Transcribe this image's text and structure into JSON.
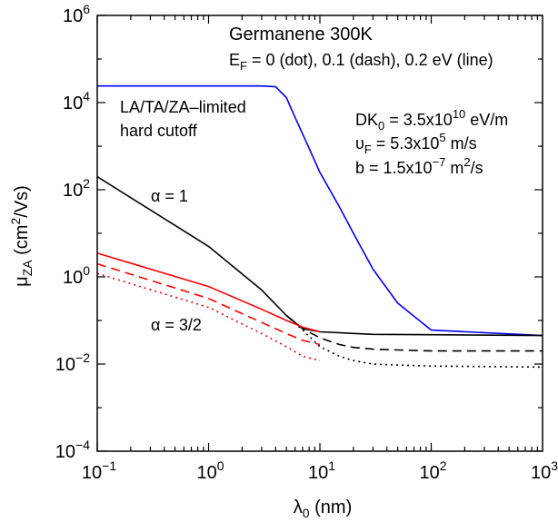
{
  "chart_data": {
    "type": "line",
    "x_scale": "log",
    "y_scale": "log",
    "xlim": [
      0.1,
      1000
    ],
    "ylim": [
      0.0001,
      1000000
    ],
    "x_ticks": [
      {
        "value": 0.1,
        "base": "10",
        "exp": "−1"
      },
      {
        "value": 1,
        "base": "10",
        "exp": "0"
      },
      {
        "value": 10,
        "base": "10",
        "exp": "1"
      },
      {
        "value": 100,
        "base": "10",
        "exp": "2"
      },
      {
        "value": 1000,
        "base": "10",
        "exp": "3"
      }
    ],
    "y_ticks": [
      {
        "value": 0.0001,
        "base": "10",
        "exp": "−4"
      },
      {
        "value": 0.01,
        "base": "10",
        "exp": "−2"
      },
      {
        "value": 1,
        "base": "10",
        "exp": "0"
      },
      {
        "value": 100,
        "base": "10",
        "exp": "2"
      },
      {
        "value": 10000,
        "base": "10",
        "exp": "4"
      },
      {
        "value": 1000000,
        "base": "10",
        "exp": "6"
      }
    ],
    "xlabel": {
      "main": "λ",
      "sub": "0",
      "rest": " (nm)"
    },
    "ylabel": {
      "main": "μ",
      "sub": "ZA",
      "pre": " (cm",
      "sup": "2",
      "post": "/Vs)"
    },
    "title": "Germanene 300K",
    "subtitle": {
      "pre": "E",
      "sub": "F",
      "rest": " = 0 (dot), 0.1 (dash), 0.2 eV (line)"
    },
    "annotations": {
      "cutoff_line1": "LA/TA/ZA–limited",
      "cutoff_line2": "hard cutoff",
      "alpha1": "α = 1",
      "alpha32": "α = 3/2",
      "param1": {
        "pre": "DK",
        "sub": "0",
        "mid": " = 3.5x10",
        "sup": "10",
        "post": " eV/m"
      },
      "param2": {
        "pre": "υ",
        "sub": "F",
        "mid": " = 5.3x10",
        "sup": "5",
        "post": " m/s"
      },
      "param3": {
        "pre": "b = 1.5x10",
        "sup": "−7",
        "post": " m",
        "sup2": "2",
        "post2": "/s"
      }
    },
    "series": [
      {
        "group": "hard cutoff",
        "ef": 0.2,
        "style": "line",
        "color": "#0000ff",
        "x": [
          0.1,
          1,
          3,
          4,
          5,
          6,
          8,
          10,
          15,
          20,
          30,
          50,
          100,
          1000
        ],
        "y": [
          24000,
          24000,
          24000,
          23000,
          13000,
          4500,
          900,
          250,
          40,
          10,
          1.5,
          0.25,
          0.06,
          0.045
        ]
      },
      {
        "group": "alpha=1",
        "ef": 0.2,
        "style": "line",
        "color": "#000000",
        "x": [
          0.1,
          1,
          3,
          5,
          7,
          10,
          30,
          100,
          1000
        ],
        "y": [
          200,
          5,
          0.5,
          0.13,
          0.065,
          0.055,
          0.048,
          0.047,
          0.045
        ]
      },
      {
        "group": "alpha=1",
        "ef": 0.1,
        "style": "dash",
        "color": "#000000",
        "x": [
          5,
          7,
          10,
          15,
          20,
          30,
          50,
          100,
          1000
        ],
        "y": [
          0.13,
          0.065,
          0.04,
          0.028,
          0.024,
          0.022,
          0.021,
          0.02,
          0.02
        ]
      },
      {
        "group": "alpha=1",
        "ef": 0,
        "style": "dot",
        "color": "#000000",
        "x": [
          5,
          7,
          10,
          15,
          20,
          30,
          50,
          100,
          1000
        ],
        "y": [
          0.13,
          0.06,
          0.025,
          0.015,
          0.012,
          0.01,
          0.0095,
          0.009,
          0.0085
        ]
      },
      {
        "group": "alpha=3/2",
        "ef": 0.2,
        "style": "line",
        "color": "#ff0000",
        "x": [
          0.1,
          1,
          3,
          5,
          7,
          10
        ],
        "y": [
          3.5,
          0.6,
          0.18,
          0.1,
          0.07,
          0.055
        ]
      },
      {
        "group": "alpha=3/2",
        "ef": 0.1,
        "style": "dash",
        "color": "#ff0000",
        "x": [
          0.1,
          1,
          3,
          5,
          7,
          10
        ],
        "y": [
          2.0,
          0.32,
          0.09,
          0.05,
          0.035,
          0.028
        ]
      },
      {
        "group": "alpha=3/2",
        "ef": 0,
        "style": "dot",
        "color": "#ff0000",
        "x": [
          0.1,
          1,
          3,
          5,
          7,
          10
        ],
        "y": [
          1.2,
          0.2,
          0.05,
          0.025,
          0.015,
          0.012
        ]
      }
    ]
  }
}
